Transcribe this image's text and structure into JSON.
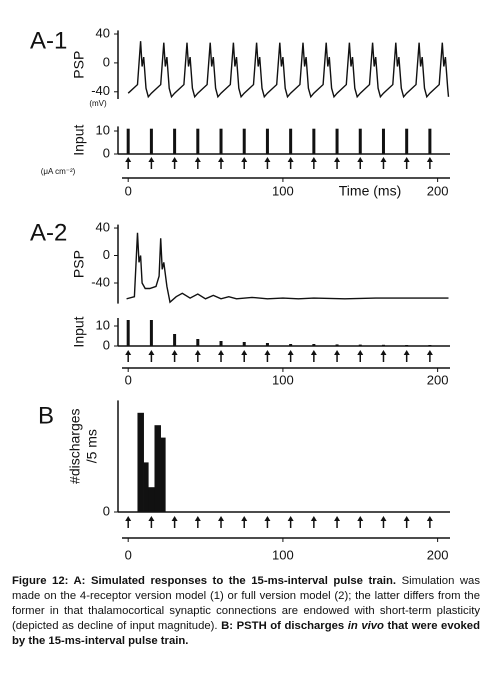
{
  "chart_data": [
    {
      "type": "line",
      "panel_label": "A-1",
      "ylabel": "PSP",
      "unit_label": "(mV)",
      "x": [
        0,
        6,
        8,
        9,
        10,
        11.5,
        13,
        15,
        21,
        23,
        24,
        25,
        26.5,
        28,
        30,
        36,
        38,
        39,
        40,
        41.5,
        43,
        45,
        51,
        53,
        54,
        55,
        56.5,
        58,
        60,
        66,
        68,
        69,
        70,
        71.5,
        73,
        75,
        81,
        83,
        84,
        85,
        86.5,
        88,
        90,
        96,
        98,
        99,
        100,
        101.5,
        103,
        105,
        111,
        113,
        114,
        115,
        116.5,
        118,
        120,
        126,
        128,
        129,
        130,
        131.5,
        133,
        135,
        141,
        143,
        144,
        145,
        146.5,
        148,
        150,
        156,
        158,
        159,
        160,
        161.5,
        163,
        165,
        171,
        173,
        174,
        175,
        176.5,
        178,
        180,
        186,
        188,
        189,
        190,
        191.5,
        193,
        195,
        201,
        203,
        204,
        205,
        206.5,
        207
      ],
      "values": [
        -42,
        -30,
        30,
        -5,
        8,
        -35,
        -47,
        -42,
        -30,
        28,
        -5,
        8,
        -35,
        -47,
        -42,
        -30,
        28,
        -5,
        8,
        -35,
        -47,
        -42,
        -30,
        28,
        -5,
        8,
        -35,
        -47,
        -42,
        -30,
        28,
        -5,
        8,
        -35,
        -47,
        -42,
        -30,
        28,
        -5,
        8,
        -35,
        -47,
        -42,
        -30,
        28,
        -5,
        8,
        -35,
        -47,
        -42,
        -30,
        28,
        -5,
        8,
        -35,
        -47,
        -42,
        -30,
        28,
        -5,
        8,
        -35,
        -47,
        -42,
        -30,
        28,
        -5,
        8,
        -35,
        -47,
        -42,
        -30,
        28,
        -5,
        8,
        -35,
        -47,
        -42,
        -30,
        28,
        -5,
        8,
        -35,
        -47,
        -42,
        -30,
        28,
        -5,
        8,
        -35,
        -47,
        -42,
        -30,
        28,
        -5,
        8,
        -35,
        -47
      ],
      "color": "#111111",
      "xlim": [
        -4,
        208
      ],
      "ylim": [
        -50,
        45
      ],
      "yticks": [
        40,
        0,
        -40
      ]
    },
    {
      "type": "bar",
      "ylabel": "Input",
      "unit_label": "(μA cm⁻²)",
      "xlabel": "Time (ms)",
      "x": [
        0,
        15,
        30,
        45,
        60,
        75,
        90,
        105,
        120,
        135,
        150,
        165,
        180,
        195
      ],
      "values": [
        11,
        11,
        11,
        11,
        11,
        11,
        11,
        11,
        11,
        11,
        11,
        11,
        11,
        11
      ],
      "color": "#111111",
      "xlim": [
        -4,
        208
      ],
      "ylim": [
        0,
        12
      ],
      "yticks": [
        10,
        0
      ],
      "xticks": [
        0,
        100,
        200
      ]
    },
    {
      "type": "line",
      "panel_label": "A-2",
      "ylabel": "PSP",
      "x": [
        -1,
        4,
        6,
        7,
        8,
        9,
        11,
        14,
        18,
        20,
        21,
        22,
        23,
        25,
        27,
        31,
        35,
        40,
        45,
        50,
        55,
        60,
        65,
        70,
        80,
        90,
        100,
        110,
        120,
        140,
        160,
        180,
        200,
        207
      ],
      "values": [
        -63,
        -60,
        33,
        -10,
        0,
        -40,
        -48,
        -48,
        -45,
        -30,
        25,
        -20,
        -10,
        -45,
        -68,
        -60,
        -55,
        -62,
        -56,
        -63,
        -58,
        -63,
        -60,
        -63,
        -61,
        -63,
        -62,
        -63,
        -62,
        -63,
        -62,
        -62,
        -62,
        -62
      ],
      "color": "#111111",
      "xlim": [
        -4,
        208
      ],
      "ylim": [
        -70,
        45
      ],
      "yticks": [
        40,
        0,
        -40
      ]
    },
    {
      "type": "bar",
      "ylabel": "Input",
      "x": [
        0,
        15,
        30,
        45,
        60,
        75,
        90,
        105,
        120,
        135,
        150,
        165,
        180,
        195
      ],
      "values": [
        13,
        13,
        6,
        3.5,
        2.5,
        2,
        1.5,
        1,
        1,
        0.8,
        0.7,
        0.6,
        0.5,
        0.5
      ],
      "color": "#111111",
      "xlim": [
        -4,
        208
      ],
      "ylim": [
        0,
        14
      ],
      "yticks": [
        10,
        0
      ],
      "xticks": [
        0,
        100,
        200
      ]
    },
    {
      "type": "histogram",
      "panel_label": "B",
      "ylabel": "#discharges",
      "ylabel_line2": "/5 ms",
      "bins": [
        6,
        10,
        13,
        17,
        21,
        24
      ],
      "values": [
        8,
        4,
        2,
        7,
        6
      ],
      "pulse_times": [
        0,
        15,
        30,
        45,
        60,
        75,
        90,
        105,
        120,
        135,
        150,
        165,
        180,
        195
      ],
      "color": "#111111",
      "xlim": [
        -4,
        208
      ],
      "ylim": [
        0,
        9
      ],
      "yticks": [
        0
      ],
      "xticks": [
        0,
        100,
        200
      ]
    }
  ],
  "caption": {
    "parts": [
      "Figure 12: A: Simulated responses to the 15-ms-interval pulse train.",
      "Simulation was made on the 4-receptor version model (1) or full version model (2); the latter differs from the former in that thalamocortical synaptic connections are endowed with short-term plasticity (depicted as decline of input magnitude).",
      "B: PSTH of discharges",
      "in vivo",
      "that were evoked by the 15-ms-interval pulse train."
    ]
  }
}
